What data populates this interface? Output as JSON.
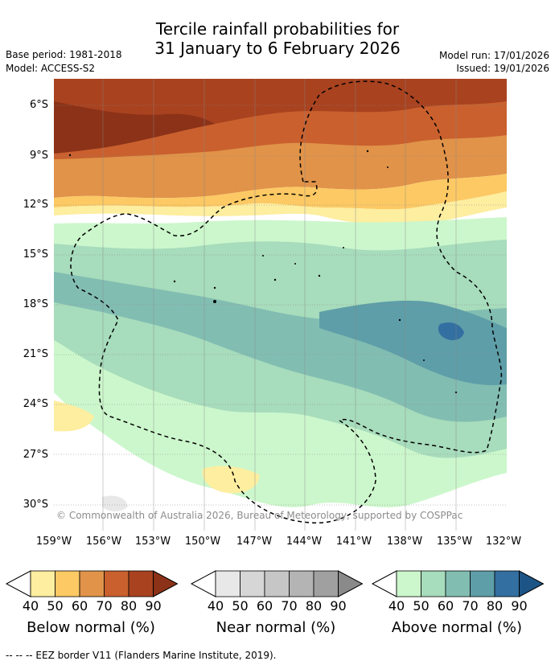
{
  "title_line1": "Tercile rainfall probabilities for",
  "title_line2": "31 January to 6 February 2026",
  "base_period": "Base period: 1981-2018",
  "model": "Model: ACCESS-S2",
  "model_run": "Model run: 17/01/2026",
  "issued": "Issued: 19/01/2026",
  "map": {
    "lat_labels": [
      "6°S",
      "9°S",
      "12°S",
      "15°S",
      "18°S",
      "21°S",
      "24°S",
      "27°S",
      "30°S"
    ],
    "lon_labels": [
      "159°W",
      "156°W",
      "153°W",
      "150°W",
      "147°W",
      "144°W",
      "141°W",
      "138°W",
      "135°W",
      "132°W"
    ],
    "copyright": "© Commonwealth of Australia 2026, Bureau of Meteorology, supported by COSPPac"
  },
  "legends": [
    {
      "name": "below",
      "title": "Below normal (%)",
      "ticks": [
        "40",
        "50",
        "60",
        "70",
        "80",
        "90"
      ],
      "colors": [
        "#fdeea0",
        "#fcc964",
        "#e09349",
        "#c9602e",
        "#a9421f",
        "#8b3218"
      ]
    },
    {
      "name": "near",
      "title": "Near normal (%)",
      "ticks": [
        "40",
        "50",
        "60",
        "70",
        "80",
        "90"
      ],
      "colors": [
        "#e8e8e8",
        "#d6d6d6",
        "#c6c6c6",
        "#b4b4b4",
        "#a0a0a0",
        "#8a8a8a"
      ]
    },
    {
      "name": "above",
      "title": "Above normal (%)",
      "ticks": [
        "40",
        "50",
        "60",
        "70",
        "80",
        "90"
      ],
      "colors": [
        "#ccf7cc",
        "#a7dcbc",
        "#82bdb2",
        "#5e9ea8",
        "#336fa0",
        "#1d5486"
      ]
    }
  ],
  "footnote": "--  --  -- EEZ border V11 (Flanders Marine Institute, 2019)."
}
